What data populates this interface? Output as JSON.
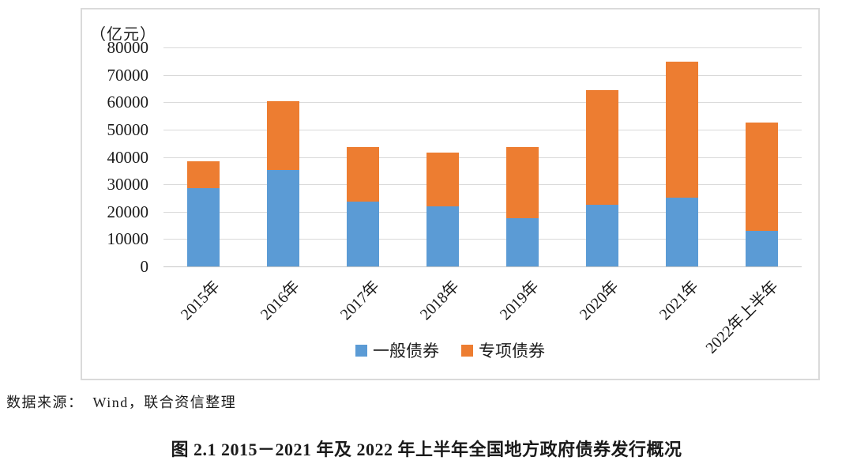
{
  "chart_data": {
    "type": "bar",
    "stacked": true,
    "unit_label": "（亿元）",
    "categories": [
      "2015年",
      "2016年",
      "2017年",
      "2018年",
      "2019年",
      "2020年",
      "2021年",
      "2022年上半年"
    ],
    "series": [
      {
        "name": "一般债券",
        "color": "#5B9BD5",
        "values": [
          28500,
          35300,
          23600,
          22000,
          17500,
          22400,
          25200,
          13000
        ]
      },
      {
        "name": "专项债券",
        "color": "#ED7D31",
        "values": [
          9800,
          25200,
          20000,
          19600,
          26000,
          42000,
          49600,
          39500
        ]
      }
    ],
    "totals": [
      38300,
      60500,
      43600,
      41600,
      43500,
      64400,
      74800,
      52500
    ],
    "ylim": [
      0,
      80000
    ],
    "ytick_step": 10000,
    "yticks": [
      "80000",
      "70000",
      "60000",
      "50000",
      "40000",
      "30000",
      "20000",
      "10000",
      "0"
    ],
    "grid": true,
    "grid_color": "#d9d9d9",
    "legend_position": "bottom-center",
    "x_label_rotation_deg": -45
  },
  "figure": {
    "source_note": "数据来源：  Wind，联合资信整理",
    "caption": "图 2.1  2015－2021 年及 2022 年上半年全国地方政府债券发行概况"
  }
}
